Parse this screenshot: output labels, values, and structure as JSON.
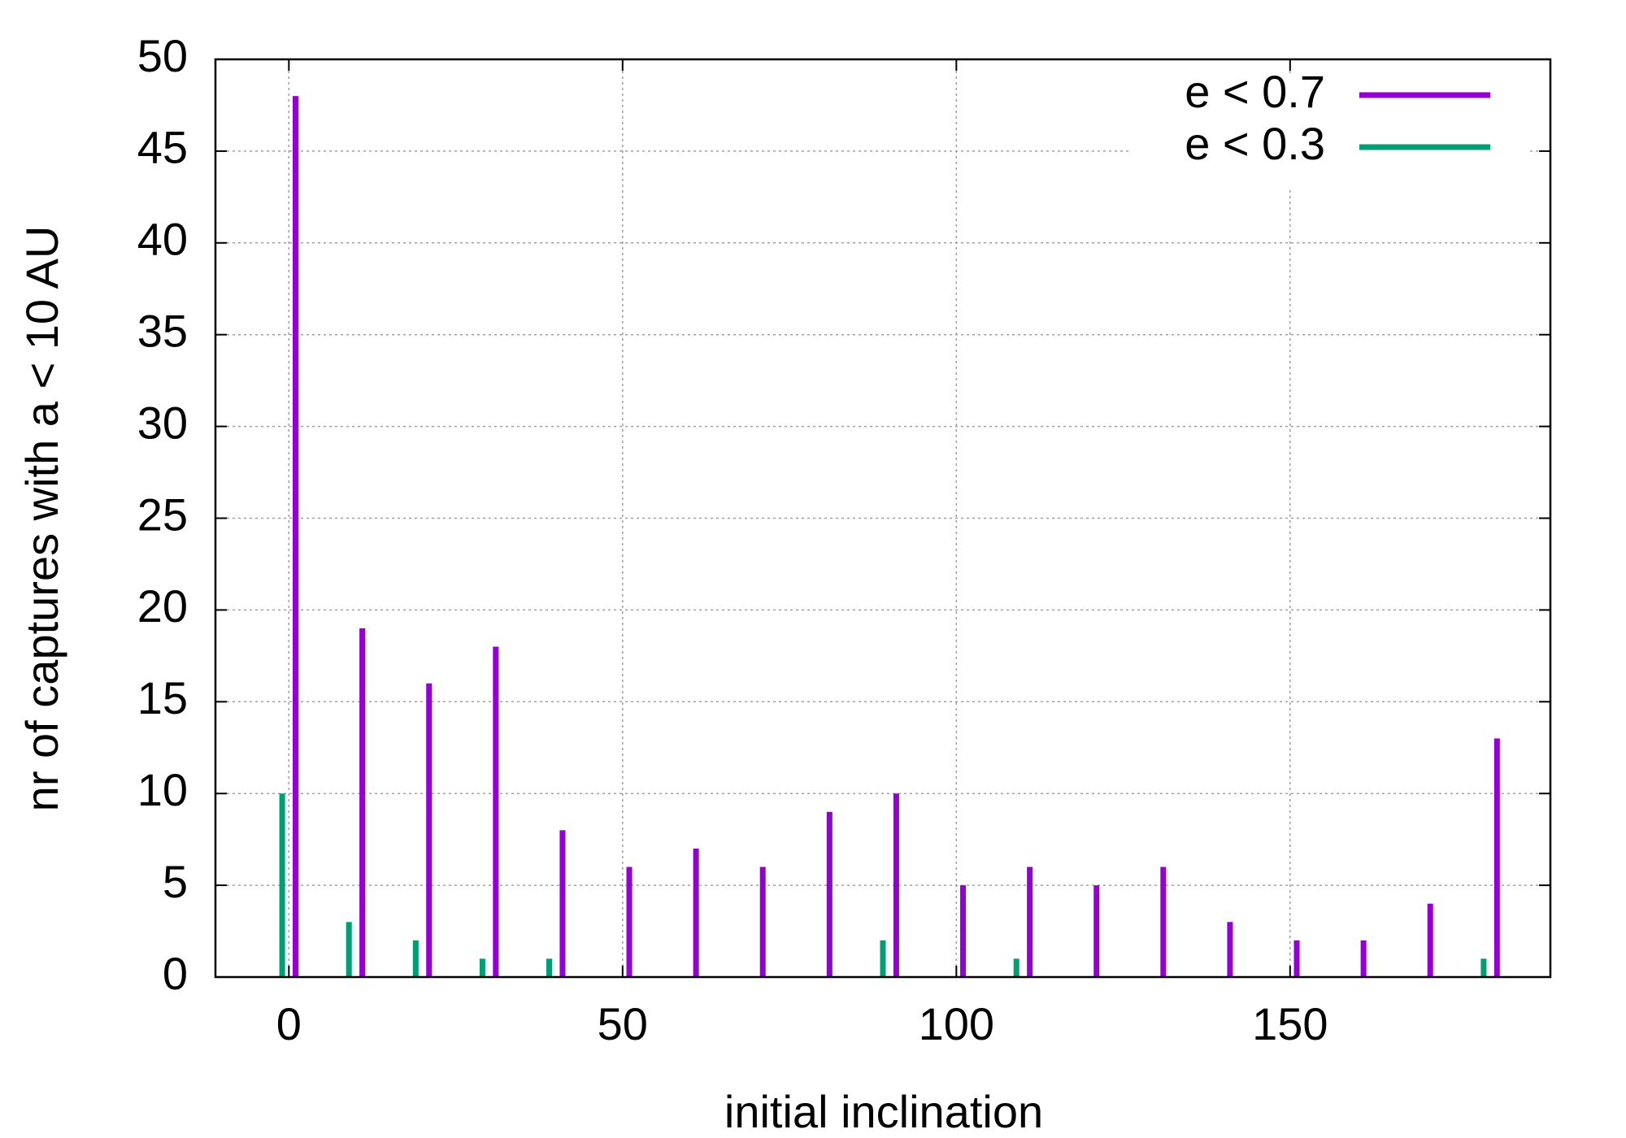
{
  "chart_data": {
    "type": "bar",
    "xlabel": "initial inclination",
    "ylabel": "nr of captures with a < 10 AU",
    "xlim": [
      -11,
      189
    ],
    "ylim": [
      0,
      50
    ],
    "xticks": [
      0,
      50,
      100,
      150
    ],
    "yticks": [
      0,
      5,
      10,
      15,
      20,
      25,
      30,
      35,
      40,
      45,
      50
    ],
    "grid": true,
    "legend": "top-right",
    "series": [
      {
        "name": "e < 0.7",
        "color": "#9400d3",
        "x": [
          1,
          11,
          21,
          31,
          41,
          51,
          61,
          71,
          81,
          91,
          101,
          111,
          121,
          131,
          141,
          151,
          161,
          171,
          181
        ],
        "values": [
          48,
          19,
          16,
          18,
          8,
          6,
          7,
          6,
          9,
          10,
          5,
          6,
          5,
          6,
          3,
          2,
          2,
          4,
          13
        ]
      },
      {
        "name": "e < 0.3",
        "color": "#009e73",
        "x": [
          -1,
          9,
          19,
          29,
          39,
          89,
          109,
          179
        ],
        "values": [
          10,
          3,
          2,
          1,
          1,
          2,
          1,
          1
        ]
      }
    ]
  }
}
